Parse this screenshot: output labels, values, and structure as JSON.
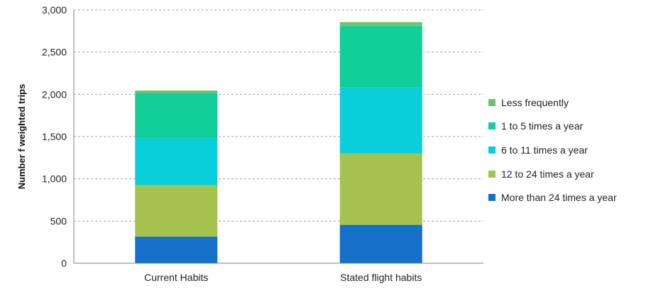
{
  "chart_data": {
    "type": "bar",
    "stacked": true,
    "title": "",
    "xlabel": "",
    "ylabel": "Number f weighted trips",
    "ylim": [
      0,
      3000
    ],
    "yticks": [
      0,
      500,
      1000,
      1500,
      2000,
      2500,
      3000
    ],
    "ytick_labels": [
      "0",
      "500",
      "1,000",
      "1,500",
      "2,000",
      "2,500",
      "3,000"
    ],
    "grid": "horizontal dashed",
    "legend_position": "right",
    "categories": [
      "Current Habits",
      "Stated flight habits"
    ],
    "series": [
      {
        "name": "More than 24 times a year",
        "color": "#1470C8",
        "values": [
          315,
          455
        ]
      },
      {
        "name": "12 to 24 times a year",
        "color": "#A5C24E",
        "values": [
          610,
          845
        ]
      },
      {
        "name": "6 to 11 times a year",
        "color": "#0ACFDB",
        "values": [
          555,
          780
        ]
      },
      {
        "name": "1 to 5 times a year",
        "color": "#12CE99",
        "values": [
          535,
          730
        ]
      },
      {
        "name": "Less frequently",
        "color": "#6CC46A",
        "values": [
          30,
          45
        ]
      }
    ]
  }
}
